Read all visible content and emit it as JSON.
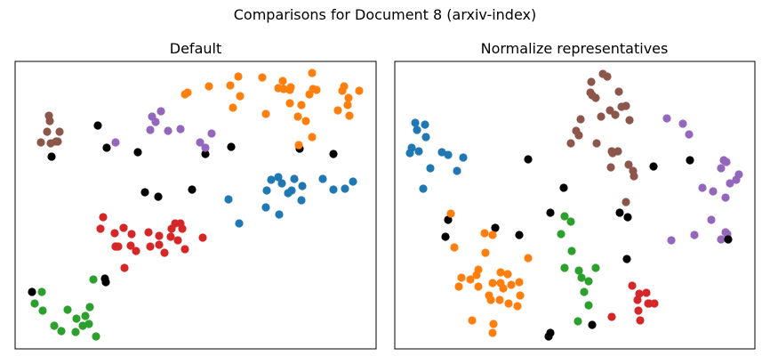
{
  "figure": {
    "suptitle": "Comparisons for Document 8 (arxiv-index)"
  },
  "colors": {
    "blue": "#1f77b4",
    "orange": "#ff7f0e",
    "green": "#2ca02c",
    "red": "#d62728",
    "purple": "#9467bd",
    "brown": "#8c564b",
    "black": "#000000"
  },
  "chart_data": [
    {
      "type": "scatter",
      "title": "Default",
      "xlabel": "",
      "ylabel": "",
      "axes_visible": false,
      "grid": false,
      "xlim": [
        0,
        406
      ],
      "ylim": [
        0,
        323
      ],
      "series": [
        {
          "color": "brown",
          "points": [
            [
              38,
              262
            ],
            [
              39,
              256
            ],
            [
              36,
              244
            ],
            [
              29,
              232
            ],
            [
              40,
              231
            ],
            [
              48,
              233
            ],
            [
              50,
              244
            ],
            [
              46,
              233
            ]
          ]
        },
        {
          "color": "black",
          "points": [
            [
              41,
              216
            ],
            [
              93,
              251
            ],
            [
              103,
              226
            ],
            [
              138,
              221
            ],
            [
              214,
              219
            ],
            [
              243,
              227
            ],
            [
              320,
              225
            ],
            [
              358,
              219
            ],
            [
              146,
              176
            ],
            [
              161,
              171
            ],
            [
              199,
              179
            ],
            [
              19,
              64
            ],
            [
              101,
              79
            ],
            [
              102,
              75
            ]
          ]
        },
        {
          "color": "purple",
          "points": [
            [
              113,
              232
            ],
            [
              154,
              261
            ],
            [
              164,
              267
            ],
            [
              158,
              255
            ],
            [
              152,
              246
            ],
            [
              172,
              245
            ],
            [
              186,
              247
            ],
            [
              208,
              232
            ],
            [
              214,
              226
            ],
            [
              221,
              242
            ]
          ]
        },
        {
          "color": "orange",
          "points": [
            [
              191,
              286
            ],
            [
              194,
              288
            ],
            [
              218,
              295
            ],
            [
              242,
              296
            ],
            [
              251,
              306
            ],
            [
              278,
              305
            ],
            [
              301,
              301
            ],
            [
              309,
              291
            ],
            [
              296,
              293
            ],
            [
              302,
              292
            ],
            [
              310,
              294
            ],
            [
              253,
              284
            ],
            [
              245,
              271
            ],
            [
              282,
              264
            ],
            [
              309,
              276
            ],
            [
              322,
              274
            ],
            [
              335,
              292
            ],
            [
              331,
              286
            ],
            [
              334,
              310
            ],
            [
              339,
              291
            ],
            [
              368,
              290
            ],
            [
              370,
              295
            ],
            [
              375,
              282
            ],
            [
              387,
              290
            ],
            [
              374,
              274
            ],
            [
              363,
              268
            ],
            [
              376,
              262
            ],
            [
              318,
              261
            ],
            [
              327,
              256
            ],
            [
              334,
              238
            ],
            [
              319,
              229
            ]
          ]
        },
        {
          "color": "blue",
          "points": [
            [
              240,
              168
            ],
            [
              252,
              141
            ],
            [
              283,
              178
            ],
            [
              288,
              190
            ],
            [
              296,
              193
            ],
            [
              300,
              186
            ],
            [
              311,
              178
            ],
            [
              314,
              191
            ],
            [
              323,
              183
            ],
            [
              307,
              175
            ],
            [
              282,
              159
            ],
            [
              297,
              151
            ],
            [
              322,
              167
            ],
            [
              346,
              191
            ],
            [
              358,
              179
            ],
            [
              371,
              180
            ],
            [
              380,
              188
            ]
          ]
        },
        {
          "color": "red",
          "points": [
            [
              99,
              148
            ],
            [
              96,
              135
            ],
            [
              112,
              130
            ],
            [
              122,
              136
            ],
            [
              131,
              129
            ],
            [
              113,
              115
            ],
            [
              113,
              115
            ],
            [
              116,
              115
            ],
            [
              130,
              116
            ],
            [
              136,
              110
            ],
            [
              150,
              131
            ],
            [
              162,
              127
            ],
            [
              176,
              135
            ],
            [
              180,
              141
            ],
            [
              186,
              141
            ],
            [
              188,
              135
            ],
            [
              183,
              122
            ],
            [
              175,
              126
            ],
            [
              168,
              108
            ],
            [
              152,
              115
            ],
            [
              162,
              117
            ],
            [
              191,
              112
            ],
            [
              211,
              125
            ],
            [
              123,
              91
            ]
          ]
        },
        {
          "color": "green",
          "points": [
            [
              88,
              78
            ],
            [
              30,
              64
            ],
            [
              22,
              51
            ],
            [
              31,
              43
            ],
            [
              59,
              44
            ],
            [
              69,
              34
            ],
            [
              79,
              37
            ],
            [
              44,
              26
            ],
            [
              52,
              20
            ],
            [
              76,
              26
            ],
            [
              83,
              28
            ],
            [
              84,
              47
            ],
            [
              68,
              19
            ],
            [
              91,
              14
            ]
          ]
        }
      ]
    },
    {
      "type": "scatter",
      "title": "Normalize representatives",
      "xlabel": "",
      "ylabel": "",
      "axes_visible": false,
      "grid": false,
      "xlim": [
        0,
        405
      ],
      "ylim": [
        0,
        323
      ],
      "series": [
        {
          "color": "blue",
          "points": [
            [
              23,
              254
            ],
            [
              34,
              252
            ],
            [
              25,
              246
            ],
            [
              35,
              238
            ],
            [
              19,
              226
            ],
            [
              27,
              222
            ],
            [
              17,
              220
            ],
            [
              53,
              221
            ],
            [
              60,
              218
            ],
            [
              77,
              215
            ],
            [
              40,
              203
            ],
            [
              70,
              200
            ],
            [
              32,
              180
            ]
          ]
        },
        {
          "color": "brown",
          "points": [
            [
              234,
              309
            ],
            [
              239,
              306
            ],
            [
              221,
              300
            ],
            [
              222,
              285
            ],
            [
              220,
              288
            ],
            [
              226,
              282
            ],
            [
              252,
              289
            ],
            [
              260,
              273
            ],
            [
              255,
              272
            ],
            [
              242,
              268
            ],
            [
              232,
              261
            ],
            [
              248,
              263
            ],
            [
              264,
              257
            ],
            [
              209,
              258
            ],
            [
              207,
              240
            ],
            [
              204,
              245
            ],
            [
              198,
              231
            ],
            [
              227,
              231
            ],
            [
              244,
              222
            ],
            [
              251,
              222
            ],
            [
              245,
              220
            ],
            [
              263,
              207
            ],
            [
              268,
              200
            ],
            [
              269,
              194
            ],
            [
              243,
              204
            ],
            [
              260,
              165
            ]
          ]
        },
        {
          "color": "purple",
          "points": [
            [
              306,
              259
            ],
            [
              324,
              253
            ],
            [
              331,
              241
            ],
            [
              370,
              212
            ],
            [
              373,
              210
            ],
            [
              367,
              203
            ],
            [
              387,
              196
            ],
            [
              346,
              181
            ],
            [
              358,
              177
            ],
            [
              377,
              186
            ],
            [
              384,
              190
            ],
            [
              372,
              170
            ],
            [
              356,
              145
            ],
            [
              337,
              128
            ],
            [
              311,
              122
            ],
            [
              372,
              131
            ],
            [
              367,
              123
            ],
            [
              374,
              129
            ]
          ]
        },
        {
          "color": "black",
          "points": [
            [
              150,
              213
            ],
            [
              291,
              205
            ],
            [
              190,
              181
            ],
            [
              332,
              212
            ],
            [
              253,
              153
            ],
            [
              262,
              148
            ],
            [
              175,
              153
            ],
            [
              60,
              145
            ],
            [
              113,
              136
            ],
            [
              140,
              128
            ],
            [
              57,
              126
            ],
            [
              375,
              123
            ],
            [
              261,
              101
            ],
            [
              222,
              27
            ],
            [
              175,
              18
            ],
            [
              173,
              14
            ]
          ]
        },
        {
          "color": "orange",
          "points": [
            [
              63,
              152
            ],
            [
              67,
              114
            ],
            [
              101,
              130
            ],
            [
              110,
              128
            ],
            [
              102,
              108
            ],
            [
              150,
              102
            ],
            [
              94,
              89
            ],
            [
              92,
              83
            ],
            [
              119,
              86
            ],
            [
              119,
              74
            ],
            [
              75,
              80
            ],
            [
              72,
              70
            ],
            [
              85,
              78
            ],
            [
              127,
              84
            ],
            [
              140,
              75
            ],
            [
              131,
              72
            ],
            [
              122,
              68
            ],
            [
              110,
              74
            ],
            [
              106,
              60
            ],
            [
              141,
              60
            ],
            [
              94,
              70
            ],
            [
              108,
              55
            ],
            [
              118,
              55
            ],
            [
              128,
              51
            ],
            [
              138,
              48
            ],
            [
              87,
              32
            ],
            [
              111,
              28
            ],
            [
              110,
              18
            ]
          ]
        },
        {
          "color": "green",
          "points": [
            [
              191,
              149
            ],
            [
              198,
              143
            ],
            [
              187,
              129
            ],
            [
              199,
              110
            ],
            [
              191,
              91
            ],
            [
              207,
              88
            ],
            [
              218,
              76
            ],
            [
              213,
              64
            ],
            [
              218,
              49
            ],
            [
              206,
              31
            ],
            [
              226,
              91
            ],
            [
              210,
              80
            ]
          ]
        },
        {
          "color": "red",
          "points": [
            [
              267,
              71
            ],
            [
              275,
              62
            ],
            [
              283,
              63
            ],
            [
              273,
              55
            ],
            [
              285,
              51
            ],
            [
              292,
              51
            ],
            [
              274,
              43
            ],
            [
              276,
              32
            ],
            [
              244,
              36
            ],
            [
              286,
              51
            ]
          ]
        }
      ]
    }
  ]
}
